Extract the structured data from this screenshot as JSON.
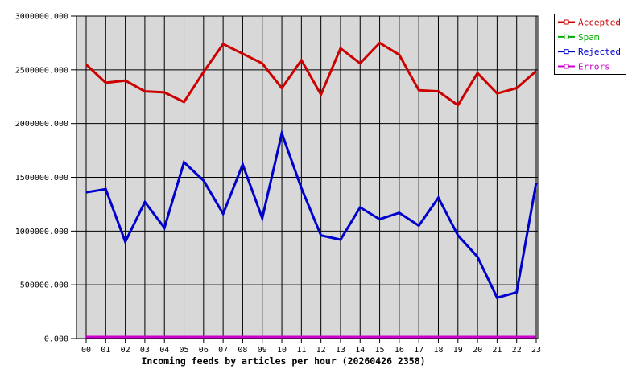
{
  "chart_data": {
    "type": "line",
    "title": "Incoming feeds by articles per hour (20260426 2358)",
    "categories": [
      "00",
      "01",
      "02",
      "03",
      "04",
      "05",
      "06",
      "07",
      "08",
      "09",
      "10",
      "11",
      "12",
      "13",
      "14",
      "15",
      "16",
      "17",
      "18",
      "19",
      "20",
      "21",
      "22",
      "23"
    ],
    "series": [
      {
        "name": "Accepted",
        "color": "#cc0000",
        "values": [
          2550000,
          2380000,
          2400000,
          2300000,
          2290000,
          2200000,
          2480000,
          2740000,
          2650000,
          2560000,
          2330000,
          2590000,
          2270000,
          2700000,
          2560000,
          2750000,
          2640000,
          2310000,
          2300000,
          2170000,
          2470000,
          2280000,
          2330000,
          2490000
        ]
      },
      {
        "name": "Spam",
        "color": "#00aa00",
        "values": [
          0,
          0,
          0,
          0,
          0,
          0,
          0,
          0,
          0,
          0,
          0,
          0,
          0,
          0,
          0,
          0,
          0,
          0,
          0,
          0,
          0,
          0,
          0,
          0
        ]
      },
      {
        "name": "Rejected",
        "color": "#0000cc",
        "values": [
          1360000,
          1390000,
          900000,
          1270000,
          1030000,
          1640000,
          1470000,
          1160000,
          1620000,
          1120000,
          1910000,
          1400000,
          960000,
          920000,
          1220000,
          1110000,
          1170000,
          1050000,
          1310000,
          960000,
          760000,
          380000,
          430000,
          1450000
        ]
      },
      {
        "name": "Errors",
        "color": "#cc00cc",
        "values": [
          0,
          0,
          0,
          0,
          0,
          0,
          0,
          0,
          0,
          0,
          0,
          0,
          0,
          0,
          0,
          0,
          0,
          0,
          0,
          0,
          0,
          0,
          0,
          0
        ]
      }
    ],
    "ylim": [
      0,
      3000000
    ],
    "ytick_step": 500000,
    "ytick_labels": [
      "0.000",
      "500000.000",
      "1000000.000",
      "1500000.000",
      "2000000.000",
      "2500000.000",
      "3000000.000"
    ],
    "xlabel": "",
    "ylabel": "",
    "grid": true,
    "legend_position": "top-right",
    "colors": {
      "plot_background": "#d8d8d8",
      "grid": "#000000",
      "page_background": "#ffffff",
      "legend_border": "#000000",
      "legend_background": "#ffffff"
    }
  }
}
